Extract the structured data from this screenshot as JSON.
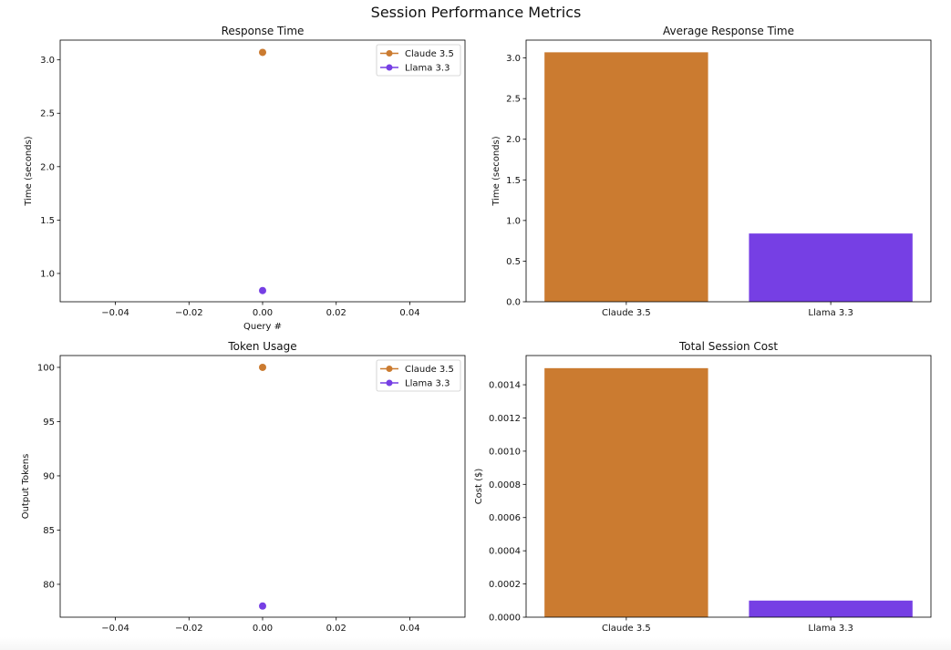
{
  "suptitle": "Session Performance Metrics",
  "colors": {
    "Claude 3.5": "#cb7b30",
    "Llama 3.3": "#763fe4"
  },
  "chart_data": [
    {
      "type": "line",
      "title": "Response Time",
      "xlabel": "Query #",
      "ylabel": "Time (seconds)",
      "xlim": [
        -0.055,
        0.055
      ],
      "ylim": [
        0.735,
        3.185
      ],
      "xticks": [
        -0.04,
        -0.02,
        0.0,
        0.02,
        0.04
      ],
      "xtick_labels": [
        "−0.04",
        "−0.02",
        "0.00",
        "0.02",
        "0.04"
      ],
      "yticks": [
        1.0,
        1.5,
        2.0,
        2.5,
        3.0
      ],
      "ytick_labels": [
        "1.0",
        "1.5",
        "2.0",
        "2.5",
        "3.0"
      ],
      "legend": "upper-right",
      "series": [
        {
          "name": "Claude 3.5",
          "x": [
            0
          ],
          "y": [
            3.07
          ]
        },
        {
          "name": "Llama 3.3",
          "x": [
            0
          ],
          "y": [
            0.84
          ]
        }
      ]
    },
    {
      "type": "bar",
      "title": "Average Response Time",
      "xlabel": "",
      "ylabel": "Time (seconds)",
      "categories": [
        "Claude 3.5",
        "Llama 3.3"
      ],
      "values": [
        3.07,
        0.84
      ],
      "ylim": [
        0,
        3.22
      ],
      "yticks": [
        0.0,
        0.5,
        1.0,
        1.5,
        2.0,
        2.5,
        3.0
      ],
      "ytick_labels": [
        "0.0",
        "0.5",
        "1.0",
        "1.5",
        "2.0",
        "2.5",
        "3.0"
      ]
    },
    {
      "type": "line",
      "title": "Token Usage",
      "xlabel": "Query #",
      "ylabel": "Output Tokens",
      "xlim": [
        -0.055,
        0.055
      ],
      "ylim": [
        76.97,
        101.09
      ],
      "xticks": [
        -0.04,
        -0.02,
        0.0,
        0.02,
        0.04
      ],
      "xtick_labels": [
        "−0.04",
        "−0.02",
        "0.00",
        "0.02",
        "0.04"
      ],
      "yticks": [
        80,
        85,
        90,
        95,
        100
      ],
      "ytick_labels": [
        "80",
        "85",
        "90",
        "95",
        "100"
      ],
      "legend": "upper-right",
      "series": [
        {
          "name": "Claude 3.5",
          "x": [
            0
          ],
          "y": [
            100
          ]
        },
        {
          "name": "Llama 3.3",
          "x": [
            0
          ],
          "y": [
            78
          ]
        }
      ]
    },
    {
      "type": "bar",
      "title": "Total Session Cost",
      "xlabel": "",
      "ylabel": "Cost ($)",
      "categories": [
        "Claude 3.5",
        "Llama 3.3"
      ],
      "values": [
        0.0015,
        0.0001
      ],
      "ylim": [
        0,
        0.001576
      ],
      "yticks": [
        0,
        0.0002,
        0.0004,
        0.0006,
        0.0008,
        0.001,
        0.0012,
        0.0014
      ],
      "ytick_labels": [
        "0.0000",
        "0.0002",
        "0.0004",
        "0.0006",
        "0.0008",
        "0.0010",
        "0.0012",
        "0.0014"
      ]
    }
  ]
}
